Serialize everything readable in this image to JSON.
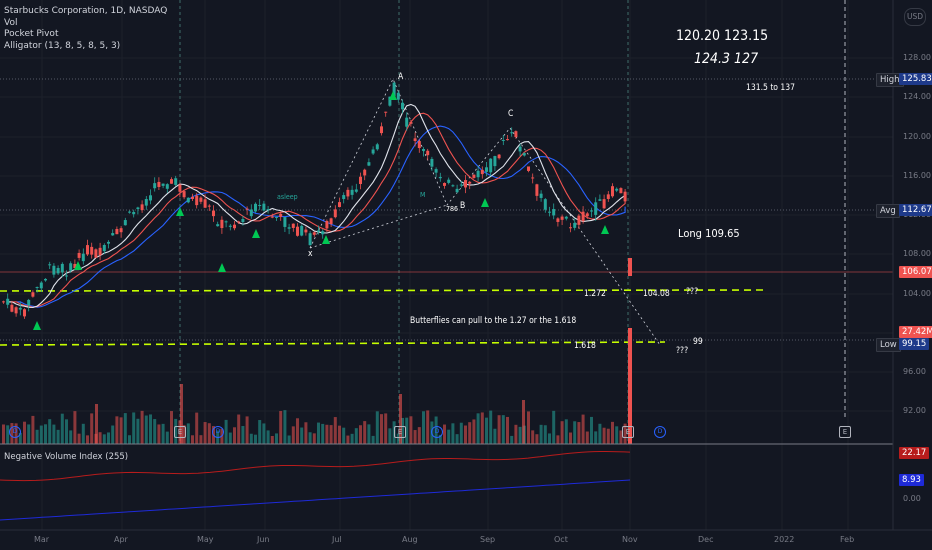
{
  "legend": {
    "symbol": "Starbucks Corporation, 1D, NASDAQ",
    "vol": "Vol",
    "pocket_pivot": "Pocket Pivot",
    "alligator": "Alligator (13, 8, 5, 8, 5, 3)"
  },
  "currency": "USD",
  "annotations": {
    "targets_line1": "120.20   123.15",
    "targets_line2": "124.3   127",
    "range": "131.5 to 137",
    "long": "Long 109.65",
    "butterfly": "Butterflies can pull to the 1.27 or the 1.618",
    "fib_1272": "1.272",
    "fib_1618": "1.618",
    "level_104": "104.08",
    "q1": "???",
    "q2": "???",
    "level_99": "99",
    "asleep": "asleep",
    "point_a": "A",
    "point_b": "B",
    "point_c": "C",
    "point_x": "x",
    "fib_786": ".786",
    "m_label": "M"
  },
  "price_axis": {
    "ticks": [
      "128.00",
      "124.00",
      "120.00",
      "116.00",
      "112.00",
      "108.00",
      "104.00",
      "100.00",
      "96.00",
      "92.00"
    ],
    "high_label": "High",
    "high_value": "125.83",
    "avg_label": "Avg",
    "avg_value": "112.67",
    "last_price": "106.07",
    "volume": "27.42M",
    "low_label": "Low",
    "low_value": "99.15"
  },
  "indicator": {
    "name": "Negative Volume Index (255)",
    "value_red": "22.17",
    "value_blue": "8.93",
    "zero": "0.00"
  },
  "time_axis": [
    "Mar",
    "Apr",
    "May",
    "Jun",
    "Jul",
    "Aug",
    "Sep",
    "Oct",
    "Nov",
    "Dec",
    "2022",
    "Feb"
  ],
  "colors": {
    "up": "#26a69a",
    "down": "#ef5350",
    "guide": "#c6ff00",
    "alligator_jaw": "#2962ff",
    "alligator_teeth": "#ef5350",
    "alligator_lips": "#e0e3eb",
    "nvi": "#b71c1c",
    "nvi_signal": "#1e2ad8"
  }
}
